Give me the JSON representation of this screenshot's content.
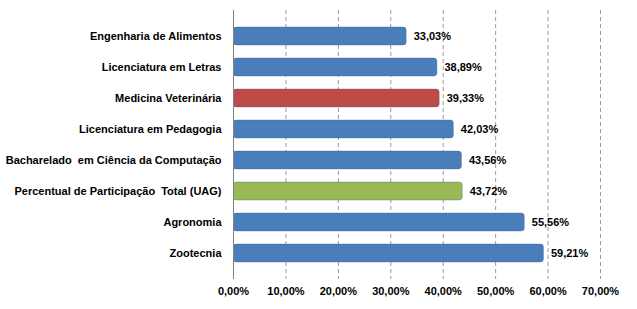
{
  "chart_data": {
    "type": "bar",
    "orientation": "horizontal",
    "categories": [
      "Engenharia de Alimentos",
      "Licenciatura em Letras",
      "Medicina Veterinária",
      "Licenciatura em Pedagogia",
      "Bacharelado  em Ciência da Computação",
      "Percentual de Participação  Total (UAG)",
      "Agronomia",
      "Zootecnia"
    ],
    "values": [
      33.03,
      38.89,
      39.33,
      42.03,
      43.56,
      43.72,
      55.56,
      59.21
    ],
    "value_labels": [
      "33,03%",
      "38,89%",
      "39,33%",
      "42,03%",
      "43,56%",
      "43,72%",
      "55,56%",
      "59,21%"
    ],
    "colors": [
      "#4a7ebb",
      "#4a7ebb",
      "#be4b48",
      "#4a7ebb",
      "#4a7ebb",
      "#98b954",
      "#4a7ebb",
      "#4a7ebb"
    ],
    "xlim": [
      0,
      70
    ],
    "xticks": [
      {
        "value": 0,
        "label": "0,00%"
      },
      {
        "value": 10,
        "label": "10,00%"
      },
      {
        "value": 20,
        "label": "20,00%"
      },
      {
        "value": 30,
        "label": "30,00%"
      },
      {
        "value": 40,
        "label": "40,00%"
      },
      {
        "value": 50,
        "label": "50,00%"
      },
      {
        "value": 60,
        "label": "60,00%"
      },
      {
        "value": 70,
        "label": "70,00%"
      }
    ],
    "grid": true,
    "data_labels": true
  }
}
